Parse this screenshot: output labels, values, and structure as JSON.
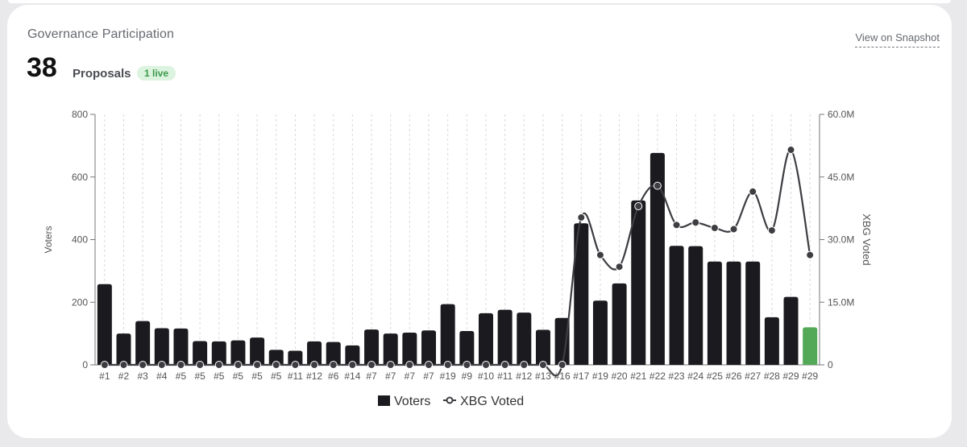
{
  "header": {
    "title": "Governance Participation",
    "proposal_count": "38",
    "proposal_label": "Proposals",
    "live_badge": "1 live",
    "link_label": "View on Snapshot"
  },
  "colors": {
    "bar": "#1b1a1f",
    "bar_live": "#54a958",
    "line": "#3d3d42",
    "badge_bg": "#dcf3df",
    "badge_text": "#3c9a4a"
  },
  "chart_data": {
    "type": "bar",
    "categories": [
      "#1",
      "#2",
      "#3",
      "#4",
      "#5",
      "#5",
      "#5",
      "#5",
      "#5",
      "#5",
      "#11",
      "#12",
      "#6",
      "#14",
      "#7",
      "#7",
      "#7",
      "#7",
      "#19",
      "#9",
      "#10",
      "#11",
      "#12",
      "#13",
      "#16",
      "#17",
      "#19",
      "#20",
      "#21",
      "#22",
      "#23",
      "#24",
      "#25",
      "#26",
      "#27",
      "#28",
      "#29",
      "#29"
    ],
    "series": [
      {
        "name": "Voters",
        "axis": "left",
        "type": "bar",
        "values": [
          258,
          100,
          140,
          117,
          116,
          76,
          75,
          78,
          87,
          48,
          45,
          75,
          73,
          62,
          113,
          100,
          103,
          110,
          194,
          108,
          165,
          176,
          167,
          112,
          150,
          452,
          205,
          260,
          525,
          677,
          380,
          379,
          330,
          330,
          330,
          152,
          217,
          120
        ]
      },
      {
        "name": "XBG Voted",
        "axis": "right",
        "type": "line",
        "values": [
          0,
          0,
          0,
          0,
          0,
          0,
          0,
          0,
          0,
          0,
          0,
          0,
          0,
          0,
          0,
          0,
          0,
          0,
          0,
          0,
          0,
          0,
          0,
          0,
          0,
          35300000,
          26300000,
          23500000,
          38000000,
          42900000,
          33500000,
          34100000,
          32800000,
          32500000,
          41500000,
          32200000,
          51500000,
          26300000
        ]
      }
    ],
    "live_index": 37,
    "y_left": {
      "label": "Voters",
      "range": [
        0,
        800
      ],
      "ticks": [
        "0",
        "200",
        "400",
        "600",
        "800"
      ]
    },
    "y_right": {
      "label": "XBG Voted",
      "range": [
        0,
        60000000
      ],
      "ticks": [
        "0",
        "15.0M",
        "30.0M",
        "45.0M",
        "60.0M"
      ]
    },
    "grid": "vertical-dashed",
    "legend": {
      "position": "bottom",
      "items": [
        "Voters",
        "XBG Voted"
      ]
    }
  }
}
